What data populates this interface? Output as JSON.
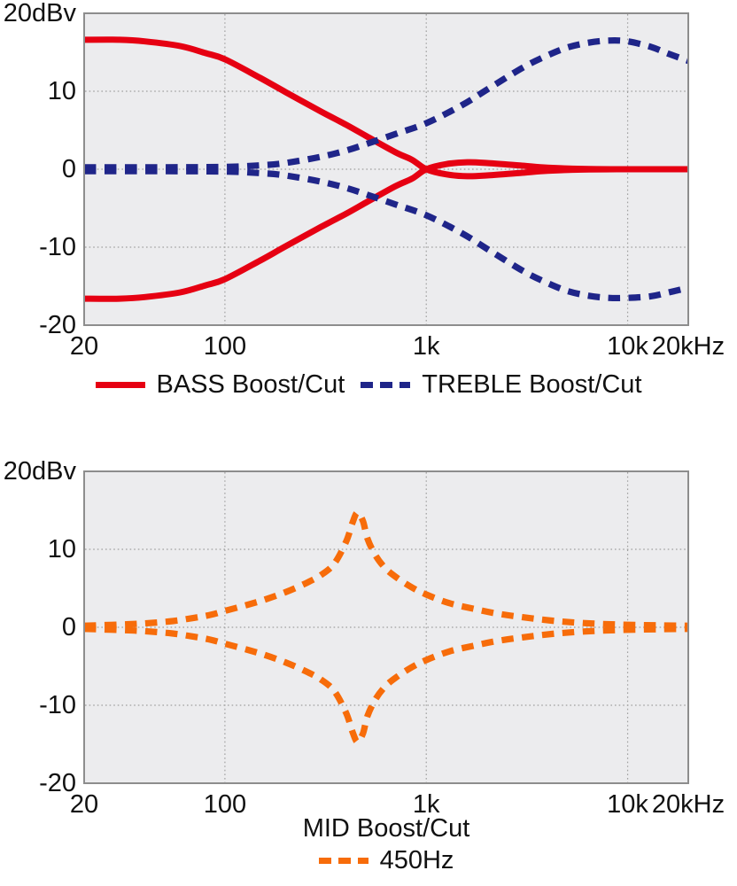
{
  "figure": {
    "background": "#ffffff",
    "plot_background": "#ececee",
    "grid_color": "#a0a0a0",
    "border_color": "#8d8d8d",
    "text_color": "#111111"
  },
  "chart_data": [
    {
      "type": "line",
      "title": "",
      "xlabel": "",
      "x_unit": "Hz",
      "y_unit": "dBv",
      "x_scale": "log",
      "xlim": [
        20,
        20000
      ],
      "ylim": [
        -20,
        20
      ],
      "grid": true,
      "legend_position": "bottom",
      "xticks": [
        {
          "value": 20,
          "label": "20"
        },
        {
          "value": 100,
          "label": "100"
        },
        {
          "value": 1000,
          "label": "1k"
        },
        {
          "value": 10000,
          "label": "10k"
        },
        {
          "value": 20000,
          "label": "20kHz"
        }
      ],
      "yticks": [
        {
          "value": 20,
          "label": "20dBv"
        },
        {
          "value": 10,
          "label": "10"
        },
        {
          "value": 0,
          "label": "0"
        },
        {
          "value": -10,
          "label": "-10"
        },
        {
          "value": -20,
          "label": "-20"
        }
      ],
      "grid_x_values": [
        100,
        1000,
        10000
      ],
      "grid_y_values": [
        10,
        0,
        -10
      ],
      "series": [
        {
          "name": "BASS Boost",
          "color": "#e60012",
          "style": "solid",
          "points": [
            [
              20,
              16.6
            ],
            [
              30,
              16.6
            ],
            [
              40,
              16.4
            ],
            [
              60,
              15.8
            ],
            [
              80,
              14.9
            ],
            [
              100,
              14.1
            ],
            [
              150,
              11.7
            ],
            [
              200,
              9.9
            ],
            [
              300,
              7.4
            ],
            [
              400,
              5.7
            ],
            [
              500,
              4.3
            ],
            [
              700,
              2.2
            ],
            [
              850,
              1.2
            ],
            [
              1000,
              0
            ],
            [
              1250,
              -0.65
            ],
            [
              1600,
              -0.9
            ],
            [
              2000,
              -0.8
            ],
            [
              3000,
              -0.45
            ],
            [
              4000,
              -0.2
            ],
            [
              6000,
              -0.05
            ],
            [
              10000,
              0
            ],
            [
              20000,
              0
            ]
          ]
        },
        {
          "name": "BASS Cut",
          "color": "#e60012",
          "style": "solid",
          "points": [
            [
              20,
              -16.6
            ],
            [
              30,
              -16.6
            ],
            [
              40,
              -16.4
            ],
            [
              60,
              -15.8
            ],
            [
              80,
              -14.9
            ],
            [
              100,
              -14.1
            ],
            [
              150,
              -11.7
            ],
            [
              200,
              -9.9
            ],
            [
              300,
              -7.4
            ],
            [
              400,
              -5.7
            ],
            [
              500,
              -4.3
            ],
            [
              700,
              -2.2
            ],
            [
              850,
              -1.2
            ],
            [
              1000,
              0
            ],
            [
              1250,
              0.65
            ],
            [
              1600,
              0.9
            ],
            [
              2000,
              0.8
            ],
            [
              3000,
              0.45
            ],
            [
              4000,
              0.2
            ],
            [
              6000,
              0.05
            ],
            [
              10000,
              0
            ],
            [
              20000,
              0
            ]
          ]
        },
        {
          "name": "TREBLE Boost",
          "color": "#1f2589",
          "style": "dashed",
          "points": [
            [
              20,
              0.25
            ],
            [
              50,
              0.25
            ],
            [
              100,
              0.3
            ],
            [
              150,
              0.5
            ],
            [
              200,
              0.8
            ],
            [
              300,
              1.6
            ],
            [
              400,
              2.4
            ],
            [
              500,
              3.2
            ],
            [
              700,
              4.5
            ],
            [
              1000,
              5.9
            ],
            [
              1500,
              8.2
            ],
            [
              2000,
              10.2
            ],
            [
              3000,
              13
            ],
            [
              4000,
              14.6
            ],
            [
              5000,
              15.6
            ],
            [
              6300,
              16.2
            ],
            [
              8000,
              16.5
            ],
            [
              10000,
              16.4
            ],
            [
              13000,
              15.7
            ],
            [
              16000,
              14.8
            ],
            [
              20000,
              13.9
            ]
          ]
        },
        {
          "name": "TREBLE Cut",
          "color": "#1f2589",
          "style": "dashed",
          "points": [
            [
              20,
              -0.25
            ],
            [
              50,
              -0.25
            ],
            [
              100,
              -0.3
            ],
            [
              150,
              -0.5
            ],
            [
              200,
              -0.8
            ],
            [
              300,
              -1.6
            ],
            [
              400,
              -2.4
            ],
            [
              500,
              -3.2
            ],
            [
              700,
              -4.5
            ],
            [
              1000,
              -5.9
            ],
            [
              1500,
              -8.2
            ],
            [
              2000,
              -10.2
            ],
            [
              3000,
              -13
            ],
            [
              4000,
              -14.6
            ],
            [
              5000,
              -15.6
            ],
            [
              6300,
              -16.2
            ],
            [
              8000,
              -16.5
            ],
            [
              10000,
              -16.5
            ],
            [
              13000,
              -16.3
            ],
            [
              16000,
              -15.8
            ],
            [
              20000,
              -15.2
            ]
          ]
        }
      ],
      "legend": [
        {
          "label": "BASS Boost/Cut",
          "color": "#e60012",
          "style": "solid"
        },
        {
          "label": "TREBLE Boost/Cut",
          "color": "#1f2589",
          "style": "dashed"
        }
      ]
    },
    {
      "type": "line",
      "title": "",
      "xlabel": "MID Boost/Cut",
      "x_unit": "Hz",
      "y_unit": "dBv",
      "x_scale": "log",
      "xlim": [
        20,
        20000
      ],
      "ylim": [
        -20,
        20
      ],
      "grid": true,
      "legend_position": "bottom",
      "xticks": [
        {
          "value": 20,
          "label": "20"
        },
        {
          "value": 100,
          "label": "100"
        },
        {
          "value": 1000,
          "label": "1k"
        },
        {
          "value": 10000,
          "label": "10k"
        },
        {
          "value": 20000,
          "label": "20kHz"
        }
      ],
      "yticks": [
        {
          "value": 20,
          "label": "20dBv"
        },
        {
          "value": 10,
          "label": "10"
        },
        {
          "value": 0,
          "label": "0"
        },
        {
          "value": -10,
          "label": "-10"
        },
        {
          "value": -20,
          "label": "-20"
        }
      ],
      "grid_x_values": [
        100,
        1000,
        10000
      ],
      "grid_y_values": [
        10,
        0,
        -10
      ],
      "series": [
        {
          "name": "MID Boost 450Hz",
          "color": "#f76c0a",
          "style": "dashed",
          "points": [
            [
              20,
              0.2
            ],
            [
              30,
              0.35
            ],
            [
              40,
              0.5
            ],
            [
              55,
              0.8
            ],
            [
              70,
              1.2
            ],
            [
              85,
              1.6
            ],
            [
              100,
              2.1
            ],
            [
              130,
              2.9
            ],
            [
              160,
              3.6
            ],
            [
              200,
              4.5
            ],
            [
              250,
              5.6
            ],
            [
              300,
              6.7
            ],
            [
              350,
              8.2
            ],
            [
              400,
              11
            ],
            [
              430,
              13.4
            ],
            [
              455,
              14.7
            ],
            [
              485,
              13.6
            ],
            [
              510,
              11.4
            ],
            [
              560,
              9.2
            ],
            [
              630,
              7.5
            ],
            [
              720,
              6.3
            ],
            [
              850,
              5.1
            ],
            [
              1000,
              4.2
            ],
            [
              1300,
              3.1
            ],
            [
              1700,
              2.4
            ],
            [
              2200,
              1.8
            ],
            [
              3000,
              1.3
            ],
            [
              4200,
              0.85
            ],
            [
              6000,
              0.55
            ],
            [
              9000,
              0.35
            ],
            [
              14000,
              0.25
            ],
            [
              20000,
              0.2
            ]
          ]
        },
        {
          "name": "MID Cut 450Hz",
          "color": "#f76c0a",
          "style": "dashed",
          "points": [
            [
              20,
              -0.2
            ],
            [
              30,
              -0.35
            ],
            [
              40,
              -0.5
            ],
            [
              55,
              -0.8
            ],
            [
              70,
              -1.2
            ],
            [
              85,
              -1.6
            ],
            [
              100,
              -2.1
            ],
            [
              130,
              -2.9
            ],
            [
              160,
              -3.6
            ],
            [
              200,
              -4.5
            ],
            [
              250,
              -5.6
            ],
            [
              300,
              -6.7
            ],
            [
              350,
              -8.2
            ],
            [
              400,
              -11
            ],
            [
              430,
              -13.4
            ],
            [
              455,
              -14.7
            ],
            [
              485,
              -13.6
            ],
            [
              510,
              -11.4
            ],
            [
              560,
              -9.2
            ],
            [
              630,
              -7.5
            ],
            [
              720,
              -6.3
            ],
            [
              850,
              -5.1
            ],
            [
              1000,
              -4.2
            ],
            [
              1300,
              -3.1
            ],
            [
              1700,
              -2.4
            ],
            [
              2200,
              -1.8
            ],
            [
              3000,
              -1.3
            ],
            [
              4200,
              -0.85
            ],
            [
              6000,
              -0.55
            ],
            [
              9000,
              -0.35
            ],
            [
              14000,
              -0.25
            ],
            [
              20000,
              -0.2
            ]
          ]
        }
      ],
      "legend": [
        {
          "label": "450Hz",
          "color": "#f76c0a",
          "style": "dashed"
        }
      ]
    }
  ]
}
